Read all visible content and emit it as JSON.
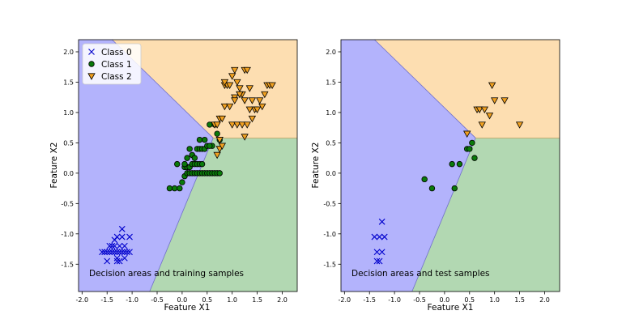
{
  "chart_data": [
    {
      "type": "scatter",
      "id": "train",
      "xlabel": "Feature X1",
      "ylabel": "Feature X2",
      "xlim": [
        -2.07,
        2.3
      ],
      "ylim": [
        -1.95,
        2.2
      ],
      "xticks": [
        "-2.0",
        "-1.5",
        "-1.0",
        "-0.5",
        "0.0",
        "0.5",
        "1.0",
        "1.5",
        "2.0"
      ],
      "yticks": [
        "-1.5",
        "-1.0",
        "-0.5",
        "0.0",
        "0.5",
        "1.0",
        "1.5",
        "2.0"
      ],
      "annotation": "Decision areas and training samples",
      "grid": false,
      "legend": {
        "placement": "top-left",
        "entries": [
          {
            "label": "Class 0",
            "marker": "x",
            "color": "#0000cc"
          },
          {
            "label": "Class 1",
            "marker": "circle",
            "color": "#0a7a0a"
          },
          {
            "label": "Class 2",
            "marker": "triangle-down",
            "color": "#f0a020"
          }
        ]
      },
      "regions": {
        "colors": {
          "class0": "#b3b3fc",
          "class1": "#b2d8b2",
          "class2": "#fddeb1"
        },
        "boundary_top_x": [
          -1.4,
          0.62
        ],
        "boundary_bottom_x": [
          0.62,
          -0.65
        ],
        "junction": [
          0.62,
          0.58
        ]
      },
      "series": [
        {
          "name": "Class 0",
          "x": [
            -1.6,
            -1.55,
            -1.5,
            -1.45,
            -1.4,
            -1.35,
            -1.3,
            -1.25,
            -1.2,
            -1.15,
            -1.1,
            -1.05,
            -1.45,
            -1.4,
            -1.35,
            -1.25,
            -1.15,
            -1.35,
            -1.3,
            -1.2,
            -1.3,
            -1.25,
            -1.15,
            -1.05,
            -1.2,
            -1.5,
            -1.3
          ],
          "y": [
            -1.3,
            -1.3,
            -1.3,
            -1.3,
            -1.3,
            -1.3,
            -1.3,
            -1.3,
            -1.3,
            -1.3,
            -1.3,
            -1.3,
            -1.2,
            -1.2,
            -1.2,
            -1.2,
            -1.2,
            -1.1,
            -1.05,
            -1.05,
            -1.4,
            -1.45,
            -1.4,
            -1.05,
            -0.92,
            -1.45,
            -1.45
          ]
        },
        {
          "name": "Class 1",
          "x": [
            -0.25,
            -0.15,
            -0.05,
            0.0,
            0.05,
            0.1,
            0.15,
            0.2,
            0.25,
            0.3,
            0.35,
            0.4,
            0.45,
            0.5,
            0.55,
            0.6,
            0.65,
            0.7,
            0.75,
            0.05,
            0.1,
            0.15,
            0.2,
            0.25,
            0.3,
            0.35,
            0.4,
            -0.1,
            0.1,
            0.2,
            0.3,
            0.35,
            0.4,
            0.45,
            0.5,
            0.6,
            0.05,
            0.15,
            0.25,
            0.35,
            0.45,
            0.55,
            0.7,
            0.75,
            0.55,
            0.65
          ],
          "y": [
            -0.25,
            -0.25,
            -0.25,
            -0.15,
            -0.05,
            0.0,
            0.0,
            0.0,
            0.0,
            0.0,
            0.0,
            0.0,
            0.0,
            0.0,
            0.0,
            0.0,
            0.0,
            0.0,
            0.0,
            0.1,
            0.1,
            0.1,
            0.15,
            0.15,
            0.15,
            0.15,
            0.15,
            0.15,
            0.25,
            0.3,
            0.4,
            0.4,
            0.4,
            0.4,
            0.45,
            0.45,
            0.15,
            0.4,
            0.25,
            0.55,
            0.55,
            0.45,
            0.65,
            0.55,
            0.8,
            0.8
          ]
        },
        {
          "name": "Class 2",
          "x": [
            0.65,
            0.7,
            0.75,
            0.8,
            0.85,
            0.9,
            1.0,
            1.05,
            1.1,
            1.15,
            1.2,
            1.25,
            1.3,
            1.35,
            1.4,
            1.45,
            1.5,
            1.55,
            1.6,
            1.65,
            1.7,
            1.75,
            1.8,
            0.85,
            0.95,
            1.05,
            1.15,
            1.25,
            1.35,
            0.75,
            0.8,
            1.0,
            1.1,
            1.2,
            1.3,
            1.4,
            0.85,
            0.95,
            1.05,
            1.15,
            1.25,
            0.75,
            0.7
          ],
          "y": [
            0.8,
            0.8,
            0.9,
            0.9,
            1.45,
            1.45,
            1.6,
            1.7,
            1.5,
            1.4,
            1.3,
            1.7,
            1.7,
            1.4,
            1.2,
            1.05,
            1.05,
            1.2,
            1.1,
            1.3,
            1.45,
            1.45,
            1.45,
            1.5,
            1.45,
            1.25,
            1.3,
            1.2,
            1.05,
            0.4,
            0.45,
            0.8,
            0.8,
            0.8,
            0.8,
            0.9,
            1.1,
            1.1,
            1.2,
            1.3,
            0.6,
            0.55,
            0.3
          ]
        }
      ]
    },
    {
      "type": "scatter",
      "id": "test",
      "xlabel": "Feature X1",
      "ylabel": "Feature X2",
      "xlim": [
        -2.07,
        2.3
      ],
      "ylim": [
        -1.95,
        2.2
      ],
      "xticks": [
        "-2.0",
        "-1.5",
        "-1.0",
        "-0.5",
        "0.0",
        "0.5",
        "1.0",
        "1.5",
        "2.0"
      ],
      "yticks": [
        "-1.5",
        "-1.0",
        "-0.5",
        "0.0",
        "0.5",
        "1.0",
        "1.5",
        "2.0"
      ],
      "annotation": "Decision areas and test samples",
      "grid": false,
      "regions": {
        "colors": {
          "class0": "#b3b3fc",
          "class1": "#b2d8b2",
          "class2": "#fddeb1"
        },
        "boundary_top_x": [
          -1.4,
          0.62
        ],
        "boundary_bottom_x": [
          0.62,
          -0.65
        ],
        "junction": [
          0.62,
          0.58
        ]
      },
      "series": [
        {
          "name": "Class 0",
          "x": [
            -1.4,
            -1.3,
            -1.2,
            -1.35,
            -1.25,
            -1.35,
            -1.3,
            -1.25
          ],
          "y": [
            -1.05,
            -1.05,
            -1.05,
            -1.3,
            -1.3,
            -1.45,
            -1.45,
            -0.8
          ]
        },
        {
          "name": "Class 1",
          "x": [
            -0.4,
            -0.25,
            0.15,
            0.3,
            0.45,
            0.5,
            0.55,
            0.6,
            0.2
          ],
          "y": [
            -0.1,
            -0.25,
            0.15,
            0.15,
            0.4,
            0.4,
            0.5,
            0.25,
            -0.25
          ]
        },
        {
          "name": "Class 2",
          "x": [
            0.45,
            0.65,
            0.7,
            0.75,
            0.8,
            0.9,
            0.95,
            1.0,
            1.2,
            1.5
          ],
          "y": [
            0.65,
            1.05,
            1.05,
            0.8,
            1.05,
            0.95,
            1.45,
            1.2,
            1.2,
            0.8
          ]
        }
      ]
    }
  ]
}
